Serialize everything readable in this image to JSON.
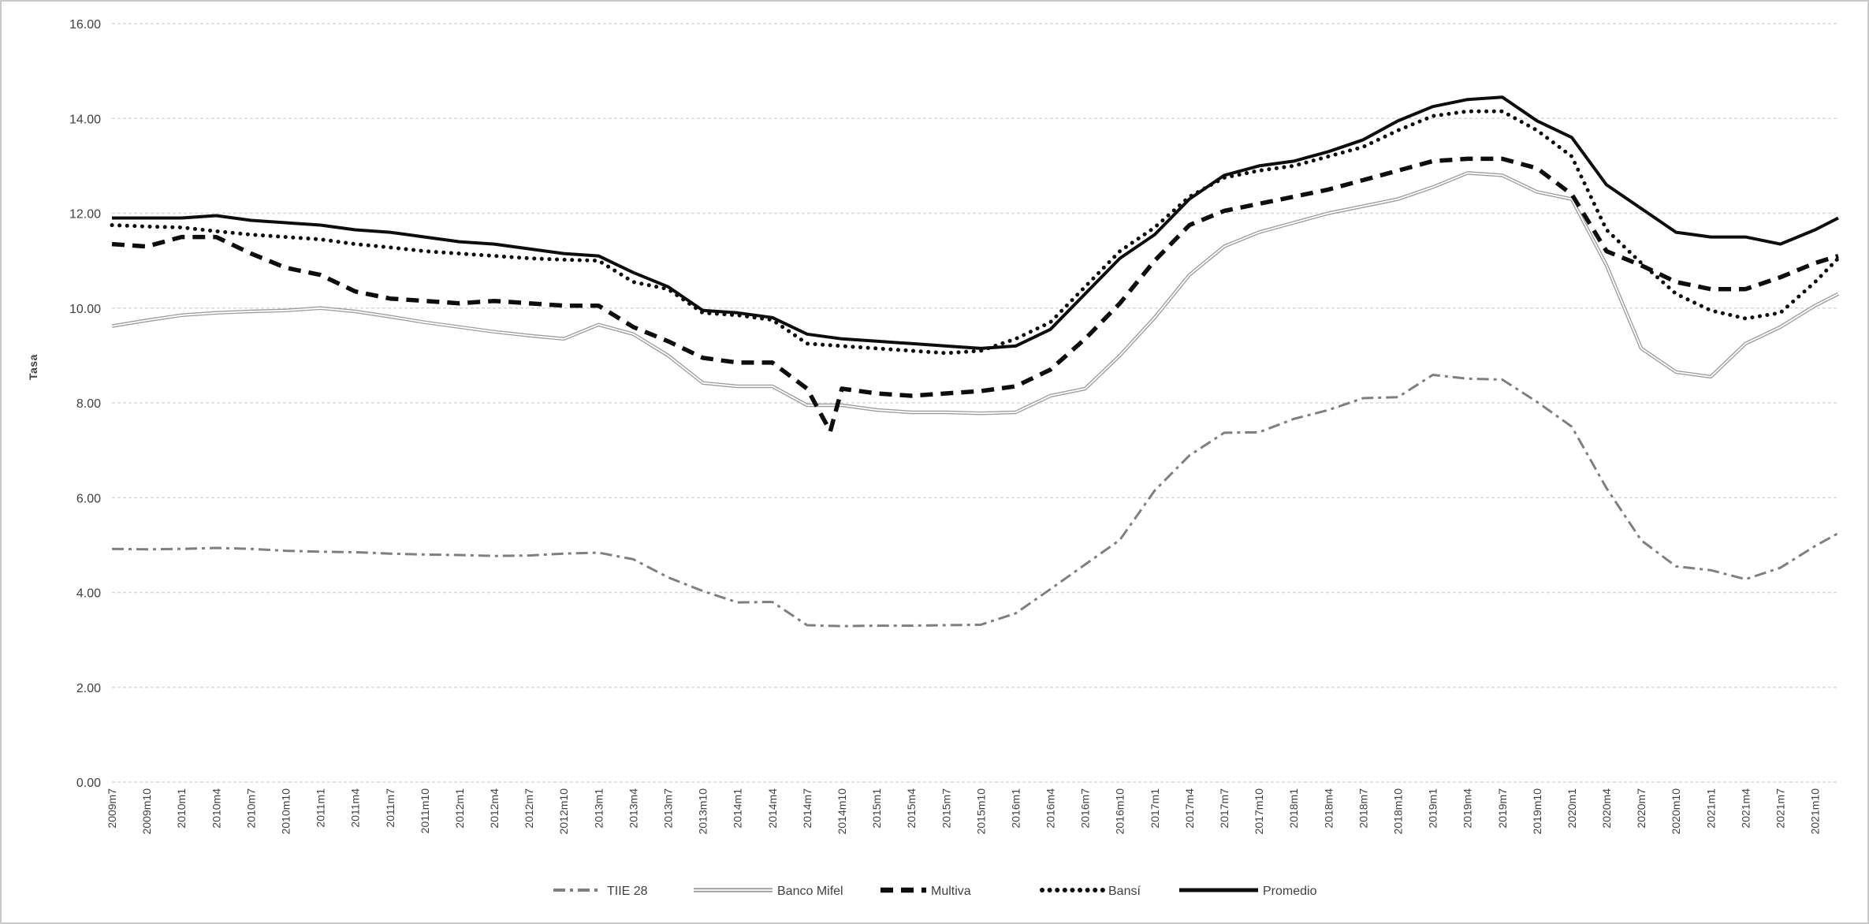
{
  "page": {
    "background": "#ffffff",
    "frame_border_color": "#c9c9c9",
    "gridline_color": "#d8d8d8",
    "tick_text_color": "#404040"
  },
  "chart_data": {
    "type": "line",
    "title": "",
    "xlabel": "",
    "ylabel": "Tasa",
    "ylim": [
      0,
      16
    ],
    "ytick_step": 2,
    "ytick_labels": [
      "0.00",
      "2.00",
      "4.00",
      "6.00",
      "8.00",
      "10.00",
      "12.00",
      "14.00",
      "16.00"
    ],
    "grid": "horizontal-dashed",
    "legend_position": "bottom-center",
    "x_unit": "months since 2009m7 (monthly series, ticks every 3 months)",
    "x_max_month": 149,
    "tick_month_positions": [
      0,
      3,
      6,
      9,
      12,
      15,
      18,
      21,
      24,
      27,
      30,
      33,
      36,
      39,
      42,
      45,
      48,
      51,
      54,
      57,
      60,
      63,
      66,
      69,
      72,
      75,
      78,
      81,
      84,
      87,
      90,
      93,
      96,
      99,
      102,
      105,
      108,
      111,
      114,
      117,
      120,
      123,
      126,
      129,
      132,
      135,
      138,
      141,
      144,
      147
    ],
    "tick_labels": [
      "2009m7",
      "2009m10",
      "2010m1",
      "2010m4",
      "2010m7",
      "2010m10",
      "2011m1",
      "2011m4",
      "2011m7",
      "2011m10",
      "2012m1",
      "2012m4",
      "2012m7",
      "2012m10",
      "2013m1",
      "2013m4",
      "2013m7",
      "2013m10",
      "2014m1",
      "2014m4",
      "2014m7",
      "2014m10",
      "2015m1",
      "2015m4",
      "2015m7",
      "2015m10",
      "2016m1",
      "2016m4",
      "2016m7",
      "2016m10",
      "2017m1",
      "2017m4",
      "2017m7",
      "2017m10",
      "2018m1",
      "2018m4",
      "2018m7",
      "2018m10",
      "2019m1",
      "2019m4",
      "2019m7",
      "2019m10",
      "2020m1",
      "2020m4",
      "2020m7",
      "2020m10",
      "2021m1",
      "2021m4",
      "2021m7",
      "2021m10"
    ],
    "series": [
      {
        "name": "TIIE 28",
        "style": "dash-dot",
        "color": "#7f7f7f",
        "points": [
          [
            0,
            4.92
          ],
          [
            3,
            4.91
          ],
          [
            6,
            4.92
          ],
          [
            9,
            4.94
          ],
          [
            12,
            4.92
          ],
          [
            15,
            4.88
          ],
          [
            18,
            4.86
          ],
          [
            21,
            4.85
          ],
          [
            24,
            4.82
          ],
          [
            27,
            4.8
          ],
          [
            30,
            4.79
          ],
          [
            33,
            4.77
          ],
          [
            36,
            4.78
          ],
          [
            39,
            4.82
          ],
          [
            42,
            4.84
          ],
          [
            45,
            4.7
          ],
          [
            48,
            4.32
          ],
          [
            51,
            4.03
          ],
          [
            54,
            3.79
          ],
          [
            57,
            3.8
          ],
          [
            60,
            3.31
          ],
          [
            63,
            3.29
          ],
          [
            66,
            3.3
          ],
          [
            69,
            3.3
          ],
          [
            72,
            3.31
          ],
          [
            75,
            3.32
          ],
          [
            78,
            3.56
          ],
          [
            81,
            4.07
          ],
          [
            84,
            4.59
          ],
          [
            87,
            5.11
          ],
          [
            90,
            6.15
          ],
          [
            93,
            6.89
          ],
          [
            96,
            7.37
          ],
          [
            99,
            7.38
          ],
          [
            102,
            7.66
          ],
          [
            105,
            7.85
          ],
          [
            108,
            8.1
          ],
          [
            111,
            8.12
          ],
          [
            114,
            8.59
          ],
          [
            117,
            8.51
          ],
          [
            120,
            8.49
          ],
          [
            123,
            8.02
          ],
          [
            126,
            7.5
          ],
          [
            129,
            6.2
          ],
          [
            132,
            5.1
          ],
          [
            135,
            4.55
          ],
          [
            138,
            4.47
          ],
          [
            141,
            4.28
          ],
          [
            144,
            4.52
          ],
          [
            147,
            4.98
          ],
          [
            149,
            5.25
          ]
        ]
      },
      {
        "name": "Banco Mifel",
        "style": "double-gray",
        "color": "#9d9d9d",
        "points": [
          [
            0,
            9.62
          ],
          [
            3,
            9.74
          ],
          [
            6,
            9.85
          ],
          [
            9,
            9.9
          ],
          [
            12,
            9.93
          ],
          [
            15,
            9.95
          ],
          [
            18,
            10.0
          ],
          [
            21,
            9.93
          ],
          [
            24,
            9.82
          ],
          [
            27,
            9.7
          ],
          [
            30,
            9.6
          ],
          [
            33,
            9.5
          ],
          [
            36,
            9.42
          ],
          [
            39,
            9.35
          ],
          [
            42,
            9.65
          ],
          [
            45,
            9.45
          ],
          [
            48,
            9.0
          ],
          [
            51,
            8.42
          ],
          [
            54,
            8.35
          ],
          [
            57,
            8.35
          ],
          [
            60,
            7.95
          ],
          [
            63,
            7.95
          ],
          [
            66,
            7.85
          ],
          [
            69,
            7.8
          ],
          [
            72,
            7.8
          ],
          [
            75,
            7.78
          ],
          [
            78,
            7.8
          ],
          [
            81,
            8.15
          ],
          [
            84,
            8.3
          ],
          [
            87,
            9.0
          ],
          [
            90,
            9.8
          ],
          [
            93,
            10.7
          ],
          [
            96,
            11.3
          ],
          [
            99,
            11.6
          ],
          [
            102,
            11.8
          ],
          [
            105,
            12.0
          ],
          [
            108,
            12.15
          ],
          [
            111,
            12.3
          ],
          [
            114,
            12.55
          ],
          [
            117,
            12.85
          ],
          [
            120,
            12.8
          ],
          [
            123,
            12.45
          ],
          [
            126,
            12.3
          ],
          [
            129,
            10.9
          ],
          [
            132,
            9.15
          ],
          [
            135,
            8.65
          ],
          [
            138,
            8.55
          ],
          [
            141,
            9.25
          ],
          [
            144,
            9.6
          ],
          [
            147,
            10.05
          ],
          [
            149,
            10.3
          ]
        ]
      },
      {
        "name": "Multiva",
        "style": "dashed",
        "color": "#0d0d0d",
        "points": [
          [
            0,
            11.35
          ],
          [
            3,
            11.3
          ],
          [
            6,
            11.5
          ],
          [
            9,
            11.5
          ],
          [
            12,
            11.15
          ],
          [
            15,
            10.85
          ],
          [
            18,
            10.7
          ],
          [
            21,
            10.35
          ],
          [
            24,
            10.2
          ],
          [
            27,
            10.15
          ],
          [
            30,
            10.1
          ],
          [
            33,
            10.15
          ],
          [
            36,
            10.1
          ],
          [
            39,
            10.05
          ],
          [
            42,
            10.05
          ],
          [
            45,
            9.6
          ],
          [
            48,
            9.3
          ],
          [
            51,
            8.95
          ],
          [
            54,
            8.85
          ],
          [
            57,
            8.85
          ],
          [
            60,
            8.3
          ],
          [
            62,
            7.4
          ],
          [
            63,
            8.3
          ],
          [
            66,
            8.2
          ],
          [
            69,
            8.15
          ],
          [
            72,
            8.2
          ],
          [
            75,
            8.25
          ],
          [
            78,
            8.35
          ],
          [
            81,
            8.7
          ],
          [
            84,
            9.35
          ],
          [
            87,
            10.1
          ],
          [
            90,
            11.0
          ],
          [
            93,
            11.75
          ],
          [
            96,
            12.05
          ],
          [
            99,
            12.2
          ],
          [
            102,
            12.35
          ],
          [
            105,
            12.5
          ],
          [
            108,
            12.7
          ],
          [
            111,
            12.9
          ],
          [
            114,
            13.1
          ],
          [
            117,
            13.15
          ],
          [
            120,
            13.15
          ],
          [
            123,
            12.95
          ],
          [
            126,
            12.4
          ],
          [
            129,
            11.2
          ],
          [
            132,
            10.9
          ],
          [
            135,
            10.55
          ],
          [
            138,
            10.4
          ],
          [
            141,
            10.4
          ],
          [
            144,
            10.65
          ],
          [
            147,
            10.95
          ],
          [
            149,
            11.1
          ]
        ]
      },
      {
        "name": "Bansí",
        "style": "dotted",
        "color": "#0d0d0d",
        "points": [
          [
            0,
            11.75
          ],
          [
            3,
            11.72
          ],
          [
            6,
            11.7
          ],
          [
            9,
            11.62
          ],
          [
            12,
            11.55
          ],
          [
            15,
            11.5
          ],
          [
            18,
            11.45
          ],
          [
            21,
            11.35
          ],
          [
            24,
            11.28
          ],
          [
            27,
            11.2
          ],
          [
            30,
            11.15
          ],
          [
            33,
            11.1
          ],
          [
            36,
            11.05
          ],
          [
            39,
            11.02
          ],
          [
            42,
            11.0
          ],
          [
            45,
            10.55
          ],
          [
            48,
            10.4
          ],
          [
            51,
            9.9
          ],
          [
            54,
            9.85
          ],
          [
            57,
            9.75
          ],
          [
            60,
            9.25
          ],
          [
            63,
            9.2
          ],
          [
            66,
            9.15
          ],
          [
            69,
            9.1
          ],
          [
            72,
            9.05
          ],
          [
            75,
            9.1
          ],
          [
            78,
            9.35
          ],
          [
            81,
            9.7
          ],
          [
            84,
            10.45
          ],
          [
            87,
            11.2
          ],
          [
            90,
            11.7
          ],
          [
            93,
            12.35
          ],
          [
            96,
            12.75
          ],
          [
            99,
            12.9
          ],
          [
            102,
            13.0
          ],
          [
            105,
            13.2
          ],
          [
            108,
            13.4
          ],
          [
            111,
            13.75
          ],
          [
            114,
            14.05
          ],
          [
            117,
            14.15
          ],
          [
            120,
            14.15
          ],
          [
            123,
            13.75
          ],
          [
            126,
            13.2
          ],
          [
            129,
            11.65
          ],
          [
            132,
            10.95
          ],
          [
            135,
            10.3
          ],
          [
            138,
            9.95
          ],
          [
            141,
            9.78
          ],
          [
            144,
            9.9
          ],
          [
            147,
            10.55
          ],
          [
            149,
            11.05
          ]
        ]
      },
      {
        "name": "Promedio",
        "style": "solid",
        "color": "#0d0d0d",
        "points": [
          [
            0,
            11.9
          ],
          [
            3,
            11.9
          ],
          [
            6,
            11.9
          ],
          [
            9,
            11.95
          ],
          [
            12,
            11.85
          ],
          [
            15,
            11.8
          ],
          [
            18,
            11.75
          ],
          [
            21,
            11.65
          ],
          [
            24,
            11.6
          ],
          [
            27,
            11.5
          ],
          [
            30,
            11.4
          ],
          [
            33,
            11.35
          ],
          [
            36,
            11.25
          ],
          [
            39,
            11.15
          ],
          [
            42,
            11.1
          ],
          [
            45,
            10.75
          ],
          [
            48,
            10.45
          ],
          [
            51,
            9.95
          ],
          [
            54,
            9.9
          ],
          [
            57,
            9.8
          ],
          [
            60,
            9.45
          ],
          [
            63,
            9.35
          ],
          [
            66,
            9.3
          ],
          [
            69,
            9.25
          ],
          [
            72,
            9.2
          ],
          [
            75,
            9.15
          ],
          [
            78,
            9.2
          ],
          [
            81,
            9.55
          ],
          [
            84,
            10.3
          ],
          [
            87,
            11.05
          ],
          [
            90,
            11.55
          ],
          [
            93,
            12.3
          ],
          [
            96,
            12.8
          ],
          [
            99,
            13.0
          ],
          [
            102,
            13.1
          ],
          [
            105,
            13.3
          ],
          [
            108,
            13.55
          ],
          [
            111,
            13.95
          ],
          [
            114,
            14.25
          ],
          [
            117,
            14.4
          ],
          [
            120,
            14.45
          ],
          [
            123,
            13.95
          ],
          [
            126,
            13.6
          ],
          [
            129,
            12.6
          ],
          [
            132,
            12.1
          ],
          [
            135,
            11.6
          ],
          [
            138,
            11.5
          ],
          [
            141,
            11.5
          ],
          [
            144,
            11.35
          ],
          [
            147,
            11.65
          ],
          [
            149,
            11.9
          ]
        ]
      }
    ]
  }
}
